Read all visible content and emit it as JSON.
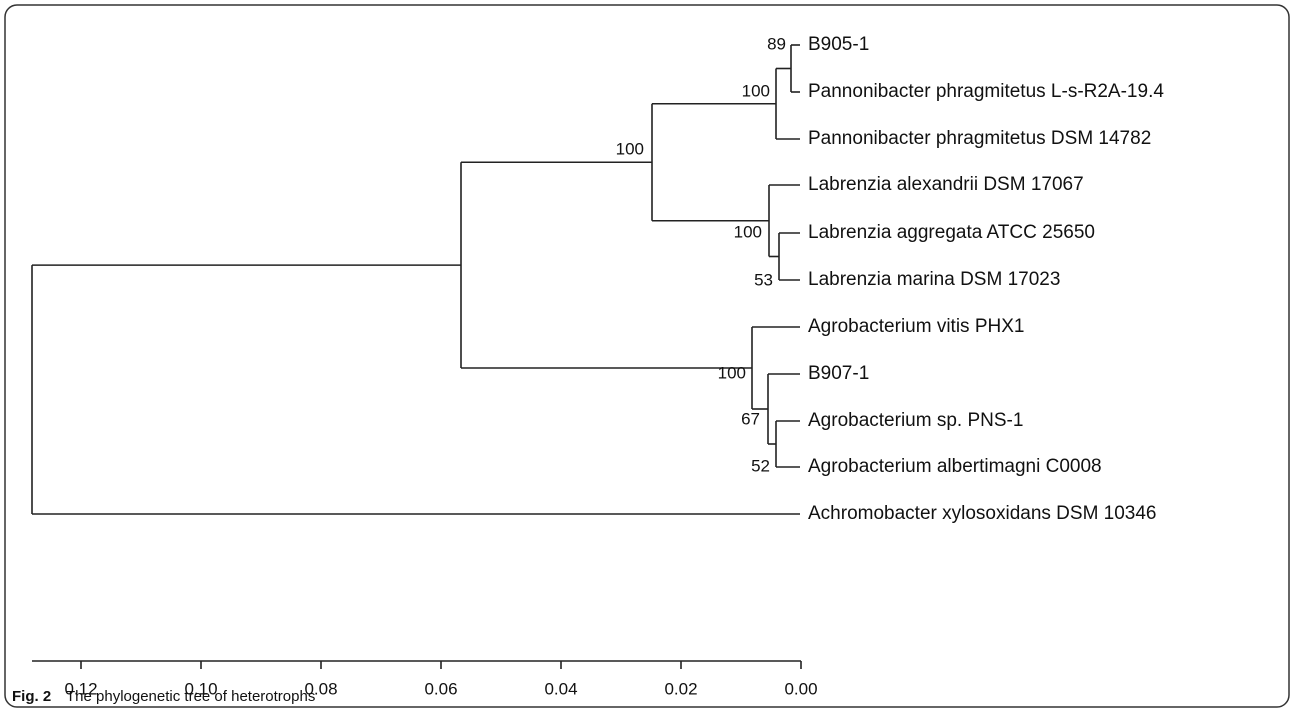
{
  "leaves": [
    "B905-1",
    "Pannonibacter phragmitetus L-s-R2A-19.4",
    "Pannonibacter phragmitetus DSM 14782",
    "Labrenzia alexandrii DSM 17067",
    "Labrenzia aggregata ATCC 25650",
    "Labrenzia marina DSM 17023",
    "Agrobacterium vitis PHX1",
    "B907-1",
    "Agrobacterium sp. PNS-1",
    "Agrobacterium albertimagni C0008",
    "Achromobacter xylosoxidans DSM 10346"
  ],
  "bootstrap": [
    "89",
    "100",
    "53",
    "100",
    "100",
    "52",
    "67",
    "100"
  ],
  "scale": [
    "0.12",
    "0.10",
    "0.08",
    "0.06",
    "0.04",
    "0.02",
    "0.00"
  ],
  "caption": {
    "label": "Fig. 2",
    "text": "The phylogenetic tree of heterotrophs"
  }
}
